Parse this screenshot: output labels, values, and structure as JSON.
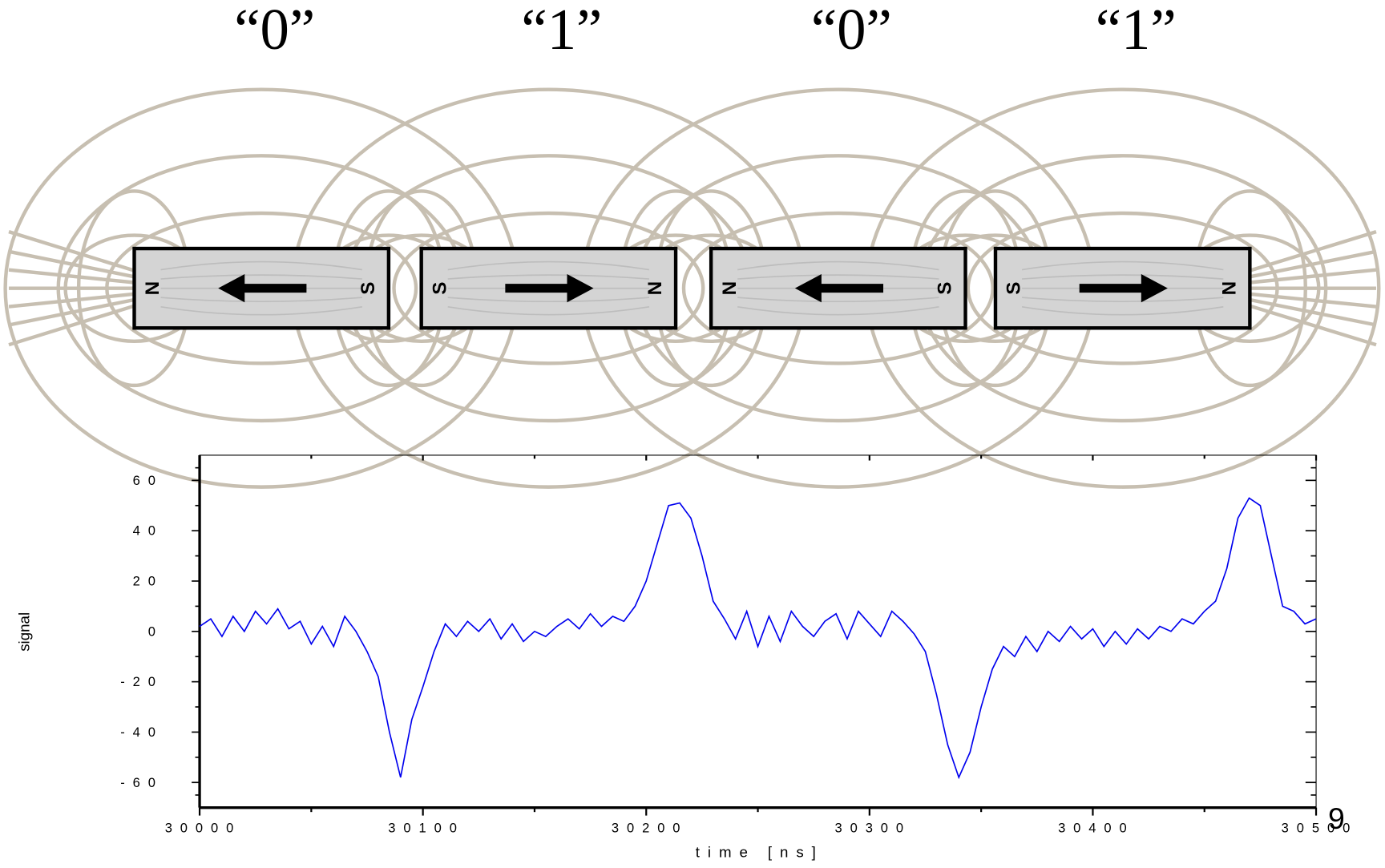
{
  "bits": [
    "“0”",
    "“1”",
    "“0”",
    "“1”"
  ],
  "magnets": [
    {
      "left": "N",
      "right": "S"
    },
    {
      "left": "S",
      "right": "N"
    },
    {
      "left": "N",
      "right": "S"
    },
    {
      "left": "S",
      "right": "N"
    }
  ],
  "page_number": "9",
  "chart_data": {
    "type": "line",
    "xlabel": "time [ns]",
    "ylabel": "signal",
    "x": [
      30000,
      30005,
      30010,
      30015,
      30020,
      30025,
      30030,
      30035,
      30040,
      30045,
      30050,
      30055,
      30060,
      30065,
      30070,
      30075,
      30080,
      30085,
      30090,
      30095,
      30100,
      30105,
      30110,
      30115,
      30120,
      30125,
      30130,
      30135,
      30140,
      30145,
      30150,
      30155,
      30160,
      30165,
      30170,
      30175,
      30180,
      30185,
      30190,
      30195,
      30200,
      30205,
      30210,
      30215,
      30220,
      30225,
      30230,
      30235,
      30240,
      30245,
      30250,
      30255,
      30260,
      30265,
      30270,
      30275,
      30280,
      30285,
      30290,
      30295,
      30300,
      30305,
      30310,
      30315,
      30320,
      30325,
      30330,
      30335,
      30340,
      30345,
      30350,
      30355,
      30360,
      30365,
      30370,
      30375,
      30380,
      30385,
      30390,
      30395,
      30400,
      30405,
      30410,
      30415,
      30420,
      30425,
      30430,
      30435,
      30440,
      30445,
      30450,
      30455,
      30460,
      30465,
      30470,
      30475,
      30480,
      30485,
      30490,
      30495,
      30500
    ],
    "series": [
      {
        "name": "signal",
        "color": "#0000ee",
        "values": [
          2,
          5,
          -2,
          6,
          0,
          8,
          3,
          9,
          1,
          4,
          -5,
          2,
          -6,
          6,
          0,
          -8,
          -18,
          -40,
          -58,
          -35,
          -22,
          -8,
          3,
          -2,
          4,
          0,
          5,
          -3,
          3,
          -4,
          0,
          -2,
          2,
          5,
          1,
          7,
          2,
          6,
          4,
          10,
          20,
          35,
          50,
          51,
          45,
          30,
          12,
          5,
          -3,
          8,
          -6,
          6,
          -4,
          8,
          2,
          -2,
          4,
          7,
          -3,
          8,
          3,
          -2,
          8,
          4,
          -1,
          -8,
          -25,
          -45,
          -58,
          -48,
          -30,
          -15,
          -6,
          -10,
          -2,
          -8,
          0,
          -4,
          2,
          -3,
          1,
          -6,
          0,
          -5,
          1,
          -3,
          2,
          0,
          5,
          3,
          8,
          12,
          25,
          45,
          53,
          50,
          30,
          10,
          8,
          3,
          5
        ]
      }
    ],
    "xlim": [
      30000,
      30500
    ],
    "ylim": [
      -70,
      70
    ],
    "xticks": [
      30000,
      30100,
      30200,
      30300,
      30400,
      30500
    ],
    "yticks": [
      -60,
      -40,
      -20,
      0,
      20,
      40,
      60
    ]
  }
}
